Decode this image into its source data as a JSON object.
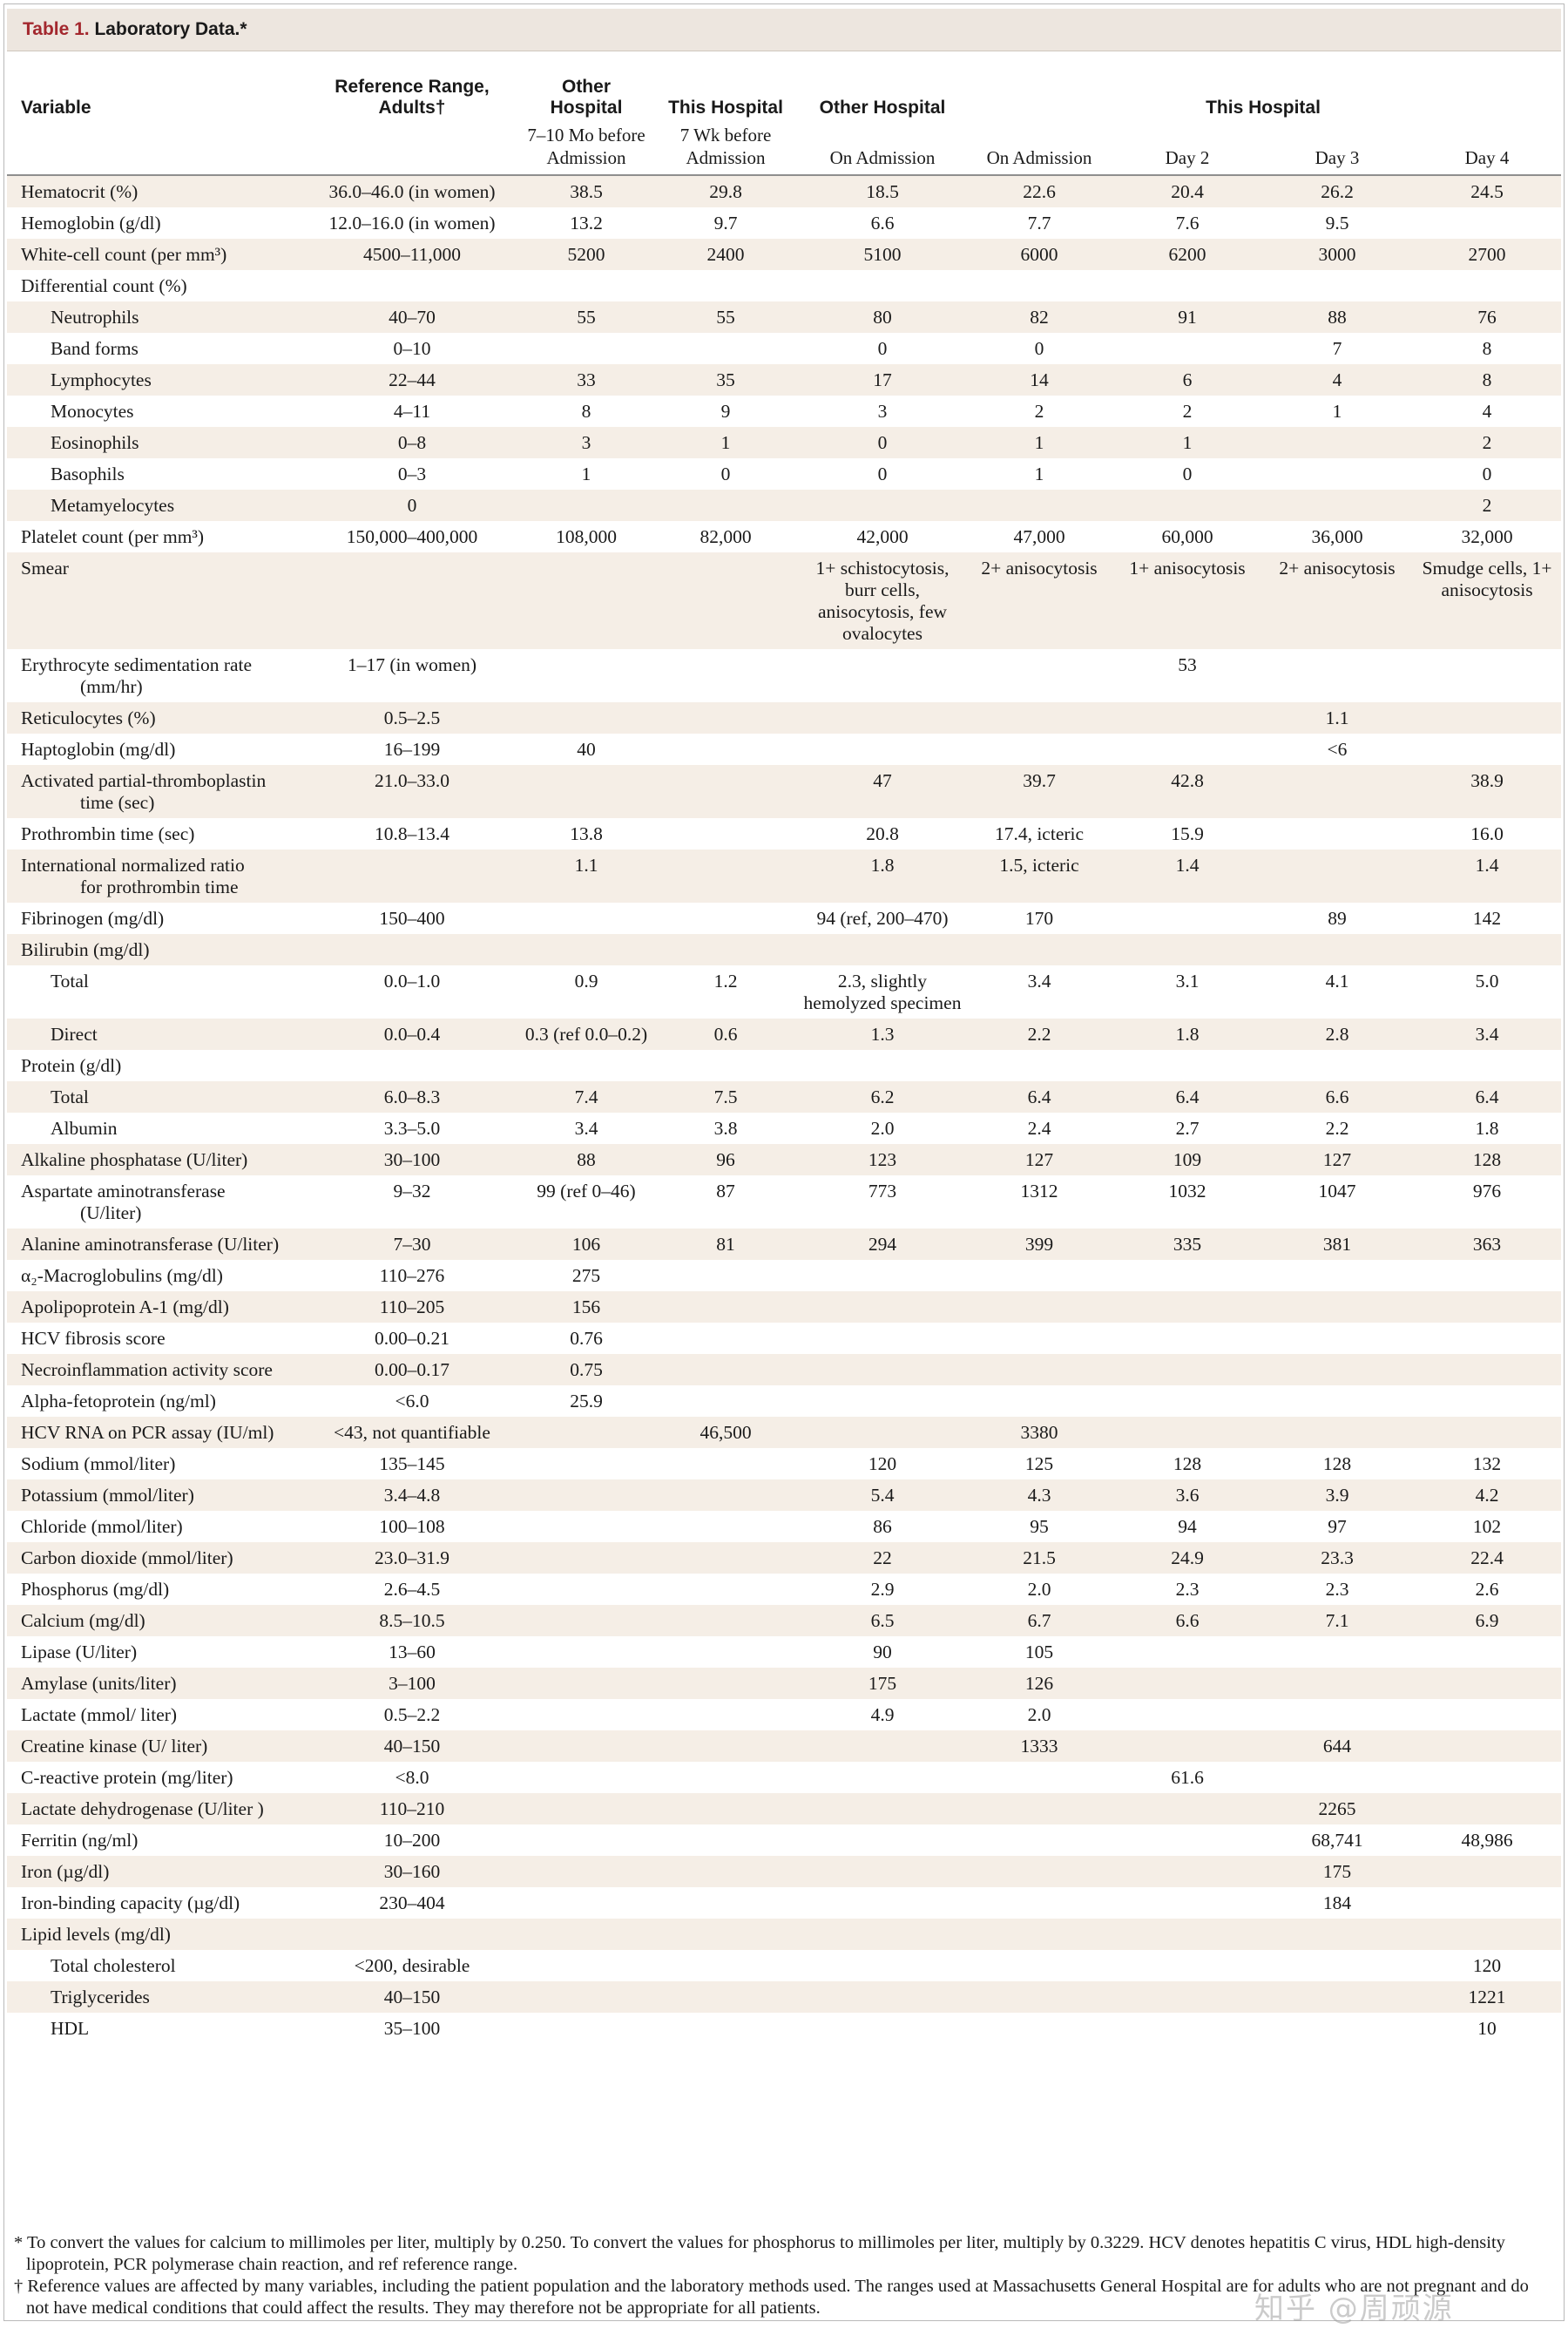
{
  "caption": {
    "number": "Table 1.",
    "title": "Laboratory Data.*"
  },
  "header": {
    "variable": "Variable",
    "reference": "Reference Range, Adults†",
    "col2": "Other Hospital",
    "col3": "This Hospital",
    "col4": "Other Hospital",
    "col5to8": "This Hospital",
    "sub2": "7–10 Mo before Admission",
    "sub3": "7 Wk before Admission",
    "sub4": "On Admission",
    "sub5": "On Admission",
    "sub6": "Day 2",
    "sub7": "Day 3",
    "sub8": "Day 4"
  },
  "rows": [
    {
      "v": "Hematocrit (%)",
      "r": "36.0–46.0 (in women)",
      "c": [
        "38.5",
        "29.8",
        "18.5",
        "22.6",
        "20.4",
        "26.2",
        "24.5"
      ]
    },
    {
      "v": "Hemoglobin (g/dl)",
      "r": "12.0–16.0 (in women)",
      "c": [
        "13.2",
        "9.7",
        "6.6",
        "7.7",
        "7.6",
        "9.5",
        ""
      ]
    },
    {
      "v": "White-cell count (per mm³)",
      "r": "4500–11,000",
      "c": [
        "5200",
        "2400",
        "5100",
        "6000",
        "6200",
        "3000",
        "2700"
      ]
    },
    {
      "v": "Differential count (%)",
      "r": "",
      "c": [
        "",
        "",
        "",
        "",
        "",
        "",
        ""
      ]
    },
    {
      "v": "Neutrophils",
      "r": "40–70",
      "c": [
        "55",
        "55",
        "80",
        "82",
        "91",
        "88",
        "76"
      ],
      "ind": true
    },
    {
      "v": "Band forms",
      "r": "0–10",
      "c": [
        "",
        "",
        "0",
        "0",
        "",
        "7",
        "8"
      ],
      "ind": true
    },
    {
      "v": "Lymphocytes",
      "r": "22–44",
      "c": [
        "33",
        "35",
        "17",
        "14",
        "6",
        "4",
        "8"
      ],
      "ind": true
    },
    {
      "v": "Monocytes",
      "r": "4–11",
      "c": [
        "8",
        "9",
        "3",
        "2",
        "2",
        "1",
        "4"
      ],
      "ind": true
    },
    {
      "v": "Eosinophils",
      "r": "0–8",
      "c": [
        "3",
        "1",
        "0",
        "1",
        "1",
        "",
        "2"
      ],
      "ind": true
    },
    {
      "v": "Basophils",
      "r": "0–3",
      "c": [
        "1",
        "0",
        "0",
        "1",
        "0",
        "",
        "0"
      ],
      "ind": true
    },
    {
      "v": "Metamyelocytes",
      "r": "0",
      "c": [
        "",
        "",
        "",
        "",
        "",
        "",
        "2"
      ],
      "ind": true
    },
    {
      "v": "Platelet count (per mm³)",
      "r": "150,000–400,000",
      "c": [
        "108,000",
        "82,000",
        "42,000",
        "47,000",
        "60,000",
        "36,000",
        "32,000"
      ]
    },
    {
      "v": "Smear",
      "r": "",
      "c": [
        "",
        "",
        "1+ schistocytosis, burr cells, anisocytosis, few ovalocytes",
        "2+ anisocytosis",
        "1+ anisocytosis",
        "2+ anisocytosis",
        "Smudge cells, 1+ anisocytosis"
      ]
    },
    {
      "v": "Erythrocyte sedimentation rate",
      "v2": "(mm/hr)",
      "r": "1–17 (in women)",
      "c": [
        "",
        "",
        "",
        "",
        "53",
        "",
        ""
      ]
    },
    {
      "v": "Reticulocytes (%)",
      "r": "0.5–2.5",
      "c": [
        "",
        "",
        "",
        "",
        "",
        "1.1",
        ""
      ]
    },
    {
      "v": "Haptoglobin (mg/dl)",
      "r": "16–199",
      "c": [
        "40",
        "",
        "",
        "",
        "",
        "<6",
        ""
      ]
    },
    {
      "v": "Activated partial-thromboplastin",
      "v2": "time (sec)",
      "r": "21.0–33.0",
      "c": [
        "",
        "",
        "47",
        "39.7",
        "42.8",
        "",
        "38.9"
      ]
    },
    {
      "v": "Prothrombin time (sec)",
      "r": "10.8–13.4",
      "c": [
        "13.8",
        "",
        "20.8",
        "17.4, icteric",
        "15.9",
        "",
        "16.0"
      ]
    },
    {
      "v": "International normalized ratio",
      "v2": "for prothrombin time",
      "r": "",
      "c": [
        "1.1",
        "",
        "1.8",
        "1.5, icteric",
        "1.4",
        "",
        "1.4"
      ]
    },
    {
      "v": "Fibrinogen (mg/dl)",
      "r": "150–400",
      "c": [
        "",
        "",
        "94 (ref, 200–470)",
        "170",
        "",
        "89",
        "142"
      ]
    },
    {
      "v": "Bilirubin (mg/dl)",
      "r": "",
      "c": [
        "",
        "",
        "",
        "",
        "",
        "",
        ""
      ]
    },
    {
      "v": "Total",
      "r": "0.0–1.0",
      "c": [
        "0.9",
        "1.2",
        "2.3, slightly hemolyzed specimen",
        "3.4",
        "3.1",
        "4.1",
        "5.0"
      ],
      "ind": true
    },
    {
      "v": "Direct",
      "r": "0.0–0.4",
      "c": [
        "0.3 (ref 0.0–0.2)",
        "0.6",
        "1.3",
        "2.2",
        "1.8",
        "2.8",
        "3.4"
      ],
      "ind": true
    },
    {
      "v": "Protein (g/dl)",
      "r": "",
      "c": [
        "",
        "",
        "",
        "",
        "",
        "",
        ""
      ]
    },
    {
      "v": "Total",
      "r": "6.0–8.3",
      "c": [
        "7.4",
        "7.5",
        "6.2",
        "6.4",
        "6.4",
        "6.6",
        "6.4"
      ],
      "ind": true
    },
    {
      "v": "Albumin",
      "r": "3.3–5.0",
      "c": [
        "3.4",
        "3.8",
        "2.0",
        "2.4",
        "2.7",
        "2.2",
        "1.8"
      ],
      "ind": true
    },
    {
      "v": "Alkaline phosphatase (U/liter)",
      "r": "30–100",
      "c": [
        "88",
        "96",
        "123",
        "127",
        "109",
        "127",
        "128"
      ]
    },
    {
      "v": "Aspartate aminotransferase",
      "v2": "(U/liter)",
      "r": "9–32",
      "c": [
        "99 (ref 0–46)",
        "87",
        "773",
        "1312",
        "1032",
        "1047",
        "976"
      ]
    },
    {
      "v": "Alanine aminotransferase (U/liter)",
      "r": "7–30",
      "c": [
        "106",
        "81",
        "294",
        "399",
        "335",
        "381",
        "363"
      ]
    },
    {
      "v": "α₂-Macroglobulins (mg/dl)",
      "r": "110–276",
      "c": [
        "275",
        "",
        "",
        "",
        "",
        "",
        ""
      ]
    },
    {
      "v": "Apolipoprotein A-1 (mg/dl)",
      "r": "110–205",
      "c": [
        "156",
        "",
        "",
        "",
        "",
        "",
        ""
      ]
    },
    {
      "v": "HCV fibrosis score",
      "r": "0.00–0.21",
      "c": [
        "0.76",
        "",
        "",
        "",
        "",
        "",
        ""
      ]
    },
    {
      "v": "Necroinflammation activity score",
      "r": "0.00–0.17",
      "c": [
        "0.75",
        "",
        "",
        "",
        "",
        "",
        ""
      ]
    },
    {
      "v": "Alpha-fetoprotein (ng/ml)",
      "r": "<6.0",
      "c": [
        "25.9",
        "",
        "",
        "",
        "",
        "",
        ""
      ]
    },
    {
      "v": "HCV RNA on PCR assay (IU/ml)",
      "r": "<43, not quantifiable",
      "c": [
        "",
        "46,500",
        "",
        "3380",
        "",
        "",
        ""
      ]
    },
    {
      "v": "Sodium (mmol/liter)",
      "r": "135–145",
      "c": [
        "",
        "",
        "120",
        "125",
        "128",
        "128",
        "132"
      ]
    },
    {
      "v": "Potassium (mmol/liter)",
      "r": "3.4–4.8",
      "c": [
        "",
        "",
        "5.4",
        "4.3",
        "3.6",
        "3.9",
        "4.2"
      ]
    },
    {
      "v": "Chloride (mmol/liter)",
      "r": "100–108",
      "c": [
        "",
        "",
        "86",
        "95",
        "94",
        "97",
        "102"
      ]
    },
    {
      "v": "Carbon dioxide (mmol/liter)",
      "r": "23.0–31.9",
      "c": [
        "",
        "",
        "22",
        "21.5",
        "24.9",
        "23.3",
        "22.4"
      ]
    },
    {
      "v": "Phosphorus (mg/dl)",
      "r": "2.6–4.5",
      "c": [
        "",
        "",
        "2.9",
        "2.0",
        "2.3",
        "2.3",
        "2.6"
      ]
    },
    {
      "v": "Calcium (mg/dl)",
      "r": "8.5–10.5",
      "c": [
        "",
        "",
        "6.5",
        "6.7",
        "6.6",
        "7.1",
        "6.9"
      ]
    },
    {
      "v": "Lipase (U/liter)",
      "r": "13–60",
      "c": [
        "",
        "",
        "90",
        "105",
        "",
        "",
        ""
      ]
    },
    {
      "v": "Amylase (units/liter)",
      "r": "3–100",
      "c": [
        "",
        "",
        "175",
        "126",
        "",
        "",
        ""
      ]
    },
    {
      "v": "Lactate (mmol/ liter)",
      "r": "0.5–2.2",
      "c": [
        "",
        "",
        "4.9",
        "2.0",
        "",
        "",
        ""
      ]
    },
    {
      "v": "Creatine kinase (U/ liter)",
      "r": "40–150",
      "c": [
        "",
        "",
        "",
        "1333",
        "",
        "644",
        ""
      ]
    },
    {
      "v": "C-reactive protein (mg/liter)",
      "r": "<8.0",
      "c": [
        "",
        "",
        "",
        "",
        "61.6",
        "",
        ""
      ]
    },
    {
      "v": "Lactate dehydrogenase (U/liter )",
      "r": "110–210",
      "c": [
        "",
        "",
        "",
        "",
        "",
        "2265",
        ""
      ]
    },
    {
      "v": "Ferritin (ng/ml)",
      "r": "10–200",
      "c": [
        "",
        "",
        "",
        "",
        "",
        "68,741",
        "48,986"
      ]
    },
    {
      "v": "Iron (µg/dl)",
      "r": "30–160",
      "c": [
        "",
        "",
        "",
        "",
        "",
        "175",
        ""
      ]
    },
    {
      "v": "Iron-binding capacity (µg/dl)",
      "r": "230–404",
      "c": [
        "",
        "",
        "",
        "",
        "",
        "184",
        ""
      ]
    },
    {
      "v": "Lipid levels (mg/dl)",
      "r": "",
      "c": [
        "",
        "",
        "",
        "",
        "",
        "",
        ""
      ]
    },
    {
      "v": "Total cholesterol",
      "r": "<200, desirable",
      "c": [
        "",
        "",
        "",
        "",
        "",
        "",
        "120"
      ],
      "ind": true
    },
    {
      "v": "Triglycerides",
      "r": "40–150",
      "c": [
        "",
        "",
        "",
        "",
        "",
        "",
        "1221"
      ],
      "ind": true
    },
    {
      "v": "HDL",
      "r": "35–100",
      "c": [
        "",
        "",
        "",
        "",
        "",
        "",
        "10"
      ],
      "ind": true
    }
  ],
  "footnotes": [
    "* To convert the values for calcium to millimoles per liter, multiply by 0.250. To convert the values for phosphorus to millimoles per liter, multiply by 0.3229. HCV denotes hepatitis C virus, HDL high-density lipoprotein, PCR polymerase chain reaction, and ref reference range.",
    "† Reference values are affected by many variables, including the patient population and the laboratory methods used. The ranges used at Massachusetts General Hospital are for adults who are not pregnant and do not have medical conditions that could affect the results. They may therefore not be appropriate for all patients."
  ],
  "watermark": "知乎 @周顽源"
}
